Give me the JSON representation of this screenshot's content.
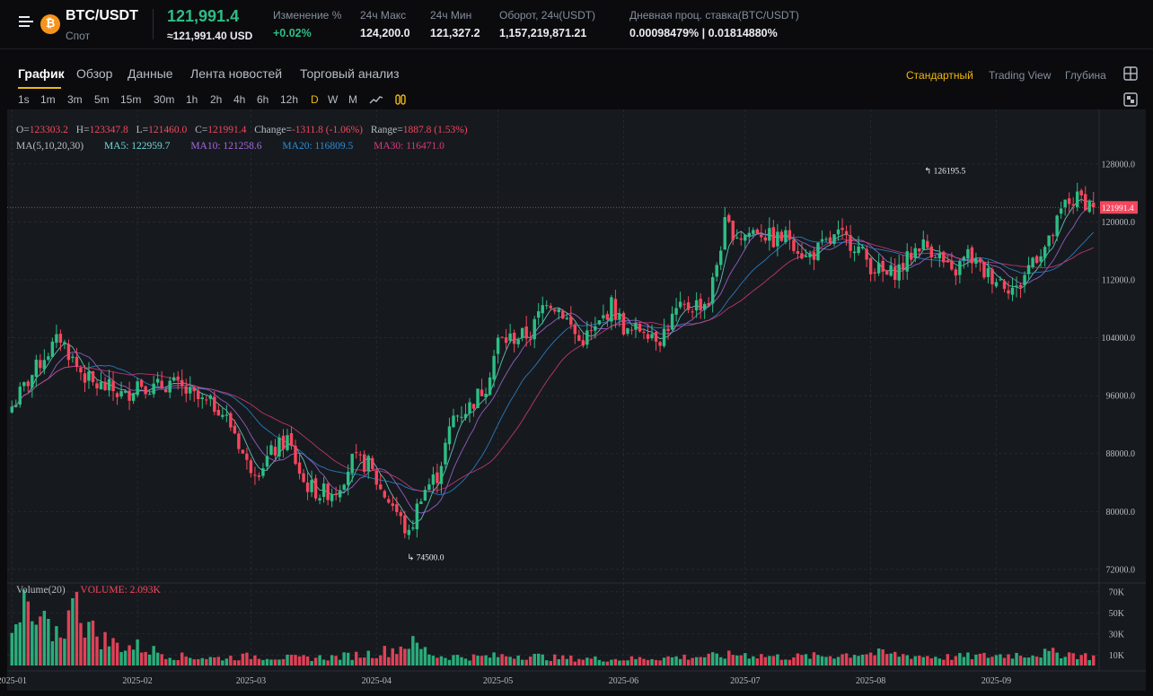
{
  "header": {
    "menu_icon": "hamburger-menu-icon",
    "coin_icon": "bitcoin-icon",
    "coin_glyph": "₿",
    "pair": "BTC/USDT",
    "market": "Спот",
    "price": "121,991.4",
    "price_usd": "≈121,991.40 USD",
    "stats": [
      {
        "label": "Изменение %",
        "value": "+0.02%",
        "color": "#2ebd85"
      },
      {
        "label": "24ч Макс",
        "value": "124,200.0"
      },
      {
        "label": "24ч Мин",
        "value": "121,327.2"
      },
      {
        "label": "Оборот, 24ч(USDT)",
        "value": "1,157,219,871.21"
      },
      {
        "label": "Дневная проц. ставка(BTC/USDT)",
        "value": "0.00098479% | 0.01814880%"
      }
    ]
  },
  "tabs": [
    "График",
    "Обзор",
    "Данные",
    "Лента новостей",
    "Торговый анализ"
  ],
  "active_tab": "График",
  "views": [
    "Стандартный",
    "Trading View",
    "Глубина"
  ],
  "active_view": "Стандартный",
  "side_icons": [
    "grid-layout-icon",
    "fullscreen-icon"
  ],
  "timeframes": [
    "1s",
    "1m",
    "3m",
    "5m",
    "15m",
    "30m",
    "1h",
    "2h",
    "4h",
    "6h",
    "12h",
    "D",
    "W",
    "M"
  ],
  "active_timeframe": "D",
  "toolbar_icons": [
    "line-chart-icon",
    "indicators-icon"
  ],
  "colors": {
    "up": "#2ebd85",
    "down": "#f6465d",
    "accent": "#f0b90b",
    "bg": "#161a1e"
  },
  "ohlc": {
    "o_label": "O=",
    "o": "123303.2",
    "h_label": "H=",
    "h": "123347.8",
    "l_label": "L=",
    "l": "121460.0",
    "c_label": "C=",
    "c": "121991.4",
    "change_label": "Change=",
    "change": "-1311.8 (-1.06%)",
    "range_label": "Range=",
    "range": "1887.8 (1.53%)"
  },
  "ma": {
    "label": "MA(5,10,20,30)",
    "items": [
      {
        "label": "MA5: 122959.7",
        "color": "#6fd9d9"
      },
      {
        "label": "MA10: 121258.6",
        "color": "#a868e0"
      },
      {
        "label": "MA20: 116809.5",
        "color": "#2f8bd8"
      },
      {
        "label": "MA30: 116471.0",
        "color": "#d93a7e"
      }
    ]
  },
  "volume_info": {
    "label": "Volume(20)",
    "value": "VOLUME: 2.093K"
  },
  "chart_data": {
    "type": "candlestick",
    "x_unit": "day",
    "y_ticks": [
      128000,
      120000,
      112000,
      104000,
      96000,
      88000,
      80000,
      72000
    ],
    "y_tick_labels": [
      "128000.0",
      "120000.0",
      "112000.0",
      "104000.0",
      "96000.0",
      "88000.0",
      "80000.0",
      "72000.0"
    ],
    "y_range": [
      70500,
      132800
    ],
    "x_labels": [
      {
        "label": "2025-01",
        "day": 0
      },
      {
        "label": "2025-02",
        "day": 31
      },
      {
        "label": "2025-03",
        "day": 59
      },
      {
        "label": "2025-04",
        "day": 90
      },
      {
        "label": "2025-05",
        "day": 120
      },
      {
        "label": "2025-06",
        "day": 151
      },
      {
        "label": "2025-07",
        "day": 181
      },
      {
        "label": "2025-08",
        "day": 212
      },
      {
        "label": "2025-09",
        "day": 243
      }
    ],
    "max_marker": {
      "label": "126195.5",
      "value": 126195.5,
      "day": 225
    },
    "min_marker": {
      "label": "74500.0",
      "value": 74500.0,
      "day": 98
    },
    "current_price": {
      "label": "121991.4",
      "value": 121991.4
    },
    "close_anchors": [
      [
        0,
        94500
      ],
      [
        4,
        98000
      ],
      [
        8,
        101500
      ],
      [
        12,
        104000
      ],
      [
        16,
        100000
      ],
      [
        20,
        97500
      ],
      [
        24,
        97000
      ],
      [
        28,
        95800
      ],
      [
        31,
        98000
      ],
      [
        35,
        97000
      ],
      [
        39,
        97800
      ],
      [
        43,
        96500
      ],
      [
        47,
        95000
      ],
      [
        51,
        94500
      ],
      [
        55,
        91000
      ],
      [
        58,
        86500
      ],
      [
        61,
        86000
      ],
      [
        64,
        88000
      ],
      [
        68,
        90000
      ],
      [
        72,
        84000
      ],
      [
        76,
        82500
      ],
      [
        80,
        83000
      ],
      [
        84,
        87000
      ],
      [
        88,
        86500
      ],
      [
        91,
        83000
      ],
      [
        94,
        81000
      ],
      [
        98,
        76500
      ],
      [
        101,
        82500
      ],
      [
        105,
        85000
      ],
      [
        109,
        93000
      ],
      [
        113,
        94500
      ],
      [
        117,
        97500
      ],
      [
        120,
        103500
      ],
      [
        124,
        104000
      ],
      [
        128,
        104500
      ],
      [
        132,
        109500
      ],
      [
        136,
        107500
      ],
      [
        140,
        103500
      ],
      [
        144,
        105000
      ],
      [
        148,
        108500
      ],
      [
        152,
        104500
      ],
      [
        156,
        105500
      ],
      [
        160,
        104000
      ],
      [
        164,
        107500
      ],
      [
        168,
        108500
      ],
      [
        172,
        109000
      ],
      [
        176,
        119500
      ],
      [
        180,
        118000
      ],
      [
        184,
        119000
      ],
      [
        188,
        117500
      ],
      [
        192,
        118000
      ],
      [
        196,
        115000
      ],
      [
        200,
        116500
      ],
      [
        204,
        118000
      ],
      [
        208,
        117000
      ],
      [
        212,
        114000
      ],
      [
        216,
        112500
      ],
      [
        220,
        114000
      ],
      [
        224,
        117000
      ],
      [
        228,
        116000
      ],
      [
        232,
        112500
      ],
      [
        236,
        115500
      ],
      [
        240,
        113000
      ],
      [
        244,
        112000
      ],
      [
        248,
        110500
      ],
      [
        252,
        115000
      ],
      [
        256,
        117000
      ],
      [
        260,
        122500
      ],
      [
        264,
        123300
      ],
      [
        267,
        121991.4
      ]
    ],
    "volume_ticks": [
      "70K",
      "50K",
      "30K",
      "10K"
    ],
    "volume_max": 75000,
    "volume_anchors": [
      [
        0,
        28000
      ],
      [
        4,
        44000
      ],
      [
        8,
        30000
      ],
      [
        12,
        34000
      ],
      [
        16,
        55000
      ],
      [
        20,
        32000
      ],
      [
        24,
        22000
      ],
      [
        28,
        18000
      ],
      [
        31,
        18000
      ],
      [
        35,
        14000
      ],
      [
        40,
        9000
      ],
      [
        50,
        7000
      ],
      [
        60,
        9000
      ],
      [
        70,
        7000
      ],
      [
        80,
        8000
      ],
      [
        90,
        12000
      ],
      [
        95,
        16000
      ],
      [
        98,
        22000
      ],
      [
        105,
        9000
      ],
      [
        115,
        8000
      ],
      [
        125,
        10000
      ],
      [
        135,
        7000
      ],
      [
        150,
        6000
      ],
      [
        165,
        8000
      ],
      [
        175,
        9000
      ],
      [
        180,
        11000
      ],
      [
        190,
        8000
      ],
      [
        200,
        9000
      ],
      [
        210,
        12000
      ],
      [
        220,
        10000
      ],
      [
        230,
        8000
      ],
      [
        240,
        9000
      ],
      [
        250,
        11000
      ],
      [
        260,
        12000
      ],
      [
        267,
        8000
      ]
    ]
  }
}
